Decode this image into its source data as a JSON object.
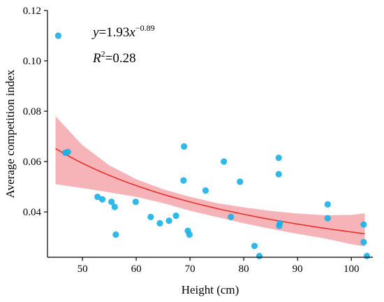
{
  "chart_data": {
    "type": "scatter",
    "xlabel": "Height (cm)",
    "ylabel": "Average competition index",
    "xlim": [
      43.5,
      104
    ],
    "ylim": [
      0.022,
      0.12
    ],
    "xticks": [
      50,
      60,
      70,
      80,
      90,
      100
    ],
    "yticks": [
      0.04,
      0.06,
      0.08,
      0.1,
      0.12
    ],
    "xtick_labels": [
      "50",
      "60",
      "70",
      "80",
      "90",
      "100"
    ],
    "ytick_labels": [
      "0.04",
      "0.06",
      "0.08",
      "0.10",
      "0.12"
    ],
    "grid": false,
    "annotations": {
      "equation": {
        "y": "y",
        "eq": "=1.93",
        "x": "x",
        "exp": "−0.89"
      },
      "r2": {
        "r": "R",
        "two": "2",
        "val": "=0.28"
      }
    },
    "colors": {
      "points": "#1ab0e6",
      "fit_line": "#e8302b",
      "band": "#f4a7ab"
    },
    "fit": {
      "a": 1.93,
      "b": -0.89,
      "r2": 0.28
    },
    "points": [
      {
        "x": 45.5,
        "y": 0.11
      },
      {
        "x": 46.8,
        "y": 0.0635
      },
      {
        "x": 47.3,
        "y": 0.0638
      },
      {
        "x": 52.8,
        "y": 0.046
      },
      {
        "x": 53.7,
        "y": 0.045
      },
      {
        "x": 55.4,
        "y": 0.044
      },
      {
        "x": 56.0,
        "y": 0.042
      },
      {
        "x": 56.2,
        "y": 0.031
      },
      {
        "x": 59.9,
        "y": 0.044
      },
      {
        "x": 62.7,
        "y": 0.038
      },
      {
        "x": 64.4,
        "y": 0.0355
      },
      {
        "x": 66.1,
        "y": 0.0365
      },
      {
        "x": 67.4,
        "y": 0.0385
      },
      {
        "x": 68.8,
        "y": 0.0525
      },
      {
        "x": 68.9,
        "y": 0.066
      },
      {
        "x": 69.6,
        "y": 0.0325
      },
      {
        "x": 69.9,
        "y": 0.031
      },
      {
        "x": 72.9,
        "y": 0.0485
      },
      {
        "x": 76.3,
        "y": 0.06
      },
      {
        "x": 77.6,
        "y": 0.038
      },
      {
        "x": 79.3,
        "y": 0.052
      },
      {
        "x": 82.0,
        "y": 0.0265
      },
      {
        "x": 82.9,
        "y": 0.0225
      },
      {
        "x": 86.5,
        "y": 0.0615
      },
      {
        "x": 86.5,
        "y": 0.055
      },
      {
        "x": 86.6,
        "y": 0.0345
      },
      {
        "x": 86.7,
        "y": 0.0355
      },
      {
        "x": 95.6,
        "y": 0.043
      },
      {
        "x": 95.6,
        "y": 0.0375
      },
      {
        "x": 102.3,
        "y": 0.035
      },
      {
        "x": 102.3,
        "y": 0.028
      },
      {
        "x": 102.9,
        "y": 0.0225
      }
    ],
    "confidence_band": {
      "x": [
        45,
        50,
        55,
        60,
        65,
        70,
        75,
        80,
        85,
        90,
        95,
        100,
        102.5
      ],
      "upper": [
        0.078,
        0.0665,
        0.0585,
        0.053,
        0.049,
        0.046,
        0.0435,
        0.0418,
        0.0404,
        0.0394,
        0.0387,
        0.0388,
        0.0395
      ],
      "lower": [
        0.051,
        0.0495,
        0.0478,
        0.046,
        0.0435,
        0.0405,
        0.038,
        0.0355,
        0.0333,
        0.0313,
        0.0295,
        0.0272,
        0.0263
      ]
    }
  }
}
